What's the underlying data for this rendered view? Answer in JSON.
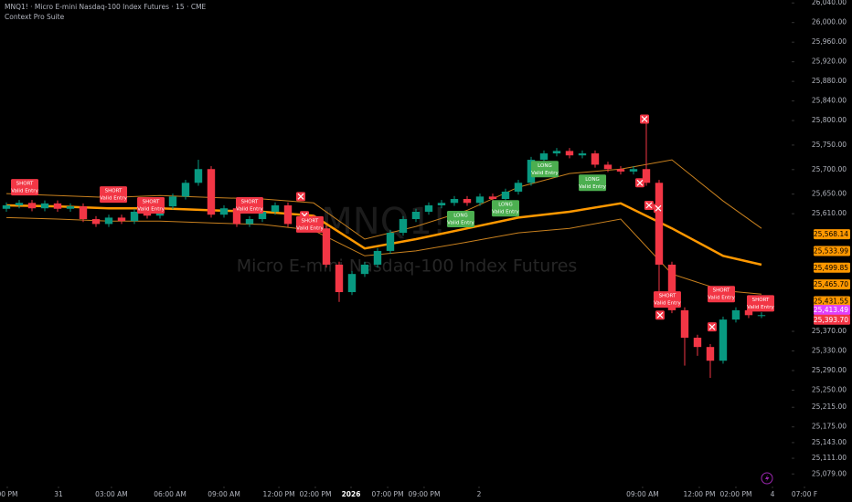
{
  "chart_data": {
    "type": "candlestick",
    "title": "MNQ1! · Micro E-mini Nasdaq-100 Index Futures · 15 · CME",
    "subtitle": "Context Pro Suite",
    "watermark": "MNQ1!",
    "watermark_subtitle": "Micro E-mini Nasdaq-100 Index Futures",
    "up_color": "#089981",
    "down_color": "#f23645",
    "grid": false,
    "xlim": [
      -0.5,
      60.93
    ],
    "ylim": [
      25059,
      26046
    ],
    "x": [
      0,
      1,
      2,
      3,
      4,
      5,
      6,
      7,
      8,
      9,
      10,
      11,
      12,
      13,
      14,
      15,
      16,
      17,
      18,
      19,
      20,
      21,
      22,
      23,
      24,
      25,
      26,
      27,
      28,
      29,
      30,
      31,
      32,
      33,
      34,
      35,
      36,
      37,
      38,
      39,
      40,
      41,
      42,
      43,
      44,
      45,
      46,
      47,
      48,
      49,
      50,
      51,
      52,
      53,
      54,
      55,
      56,
      57,
      58,
      59
    ],
    "open": [
      25620,
      25627,
      25632,
      25621,
      25631,
      25620,
      25625,
      25599,
      25589,
      25602,
      25595,
      25614,
      25606,
      25625,
      25645,
      25673,
      25701,
      25608,
      25621,
      25589,
      25599,
      25614,
      25627,
      25589,
      25602,
      25580,
      25506,
      25450,
      25487,
      25506,
      25534,
      25571,
      25599,
      25614,
      25627,
      25632,
      25640,
      25632,
      25645,
      25640,
      25655,
      25673,
      25720,
      25733,
      25738,
      25729,
      25733,
      25710,
      25701,
      25696,
      25701,
      25673,
      25506,
      25413,
      25357,
      25338,
      25310,
      25394,
      25413,
      25403
    ],
    "high": [
      25633,
      25638,
      25638,
      25637,
      25637,
      25631,
      25631,
      25605,
      25608,
      25608,
      25620,
      25620,
      25631,
      25651,
      25679,
      25720,
      25707,
      25627,
      25627,
      25605,
      25620,
      25633,
      25633,
      25608,
      25608,
      25586,
      25512,
      25493,
      25512,
      25540,
      25577,
      25605,
      25620,
      25633,
      25638,
      25646,
      25646,
      25651,
      25651,
      25661,
      25679,
      25726,
      25739,
      25744,
      25744,
      25739,
      25739,
      25716,
      25707,
      25707,
      25803,
      25679,
      25512,
      25419,
      25363,
      25344,
      25400,
      25419,
      25419,
      25409
    ],
    "low": [
      25614,
      25621,
      25615,
      25615,
      25614,
      25614,
      25593,
      25583,
      25583,
      25589,
      25589,
      25600,
      25600,
      25619,
      25639,
      25667,
      25602,
      25602,
      25583,
      25583,
      25593,
      25608,
      25583,
      25583,
      25574,
      25500,
      25430,
      25444,
      25481,
      25500,
      25528,
      25565,
      25593,
      25608,
      25621,
      25626,
      25626,
      25626,
      25634,
      25634,
      25649,
      25667,
      25714,
      25727,
      25723,
      25723,
      25704,
      25695,
      25690,
      25690,
      25667,
      25420,
      25407,
      25300,
      25320,
      25275,
      25304,
      25388,
      25397,
      25397
    ],
    "close": [
      25627,
      25632,
      25621,
      25631,
      25620,
      25625,
      25599,
      25589,
      25602,
      25595,
      25614,
      25606,
      25625,
      25645,
      25673,
      25701,
      25608,
      25621,
      25589,
      25599,
      25614,
      25627,
      25589,
      25602,
      25580,
      25506,
      25450,
      25487,
      25506,
      25534,
      25571,
      25599,
      25614,
      25627,
      25632,
      25640,
      25632,
      25645,
      25640,
      25655,
      25673,
      25720,
      25733,
      25738,
      25729,
      25733,
      25710,
      25701,
      25696,
      25701,
      25673,
      25506,
      25413,
      25357,
      25338,
      25310,
      25394,
      25413,
      25403,
      25403
    ],
    "bands": [
      {
        "color": "#ff9800",
        "width": 2.5,
        "x": [
          0,
          4,
          8,
          12,
          16,
          20,
          24,
          28,
          32,
          36,
          40,
          44,
          48,
          52,
          56,
          59
        ],
        "values": [
          25627,
          25625,
          25621,
          25621,
          25617,
          25614,
          25606,
          25539,
          25558,
          25580,
          25602,
          25614,
          25631,
          25580,
          25524,
          25506
        ]
      },
      {
        "color": "#c8801e",
        "width": 1,
        "x": [
          0,
          4,
          8,
          12,
          16,
          20,
          24,
          28,
          32,
          36,
          40,
          44,
          48,
          52,
          56,
          59
        ],
        "values": [
          25651,
          25647,
          25643,
          25647,
          25643,
          25640,
          25632,
          25558,
          25584,
          25617,
          25664,
          25692,
          25701,
          25720,
          25636,
          25580
        ]
      },
      {
        "color": "#c8801e",
        "width": 1,
        "x": [
          0,
          4,
          8,
          12,
          16,
          20,
          24,
          28,
          32,
          36,
          40,
          44,
          48,
          52,
          56,
          59
        ],
        "values": [
          25602,
          25599,
          25595,
          25595,
          25591,
          25588,
          25576,
          25524,
          25534,
          25552,
          25571,
          25580,
          25599,
          25487,
          25453,
          25446
        ]
      }
    ],
    "signals": [
      {
        "label": "SHORT",
        "text": "Valid Entry",
        "color": "#f23645",
        "x": 1.43,
        "y": 25664
      },
      {
        "label": "SHORT",
        "text": "Valid Entry",
        "color": "#f23645",
        "x": 8.36,
        "y": 25649
      },
      {
        "label": "SHORT",
        "text": "Valid Entry",
        "color": "#f23645",
        "x": 11.29,
        "y": 25627
      },
      {
        "label": "SHORT",
        "text": "Valid Entry",
        "color": "#f23645",
        "x": 19,
        "y": 25627
      },
      {
        "label": "SHORT",
        "text": "Valid Entry",
        "color": "#f23645",
        "x": 23.71,
        "y": 25588
      },
      {
        "label": "LONG",
        "text": "Valid Entry",
        "color": "#4caf50",
        "x": 35.5,
        "y": 25599
      },
      {
        "label": "LONG",
        "text": "Valid Entry",
        "color": "#4caf50",
        "x": 39,
        "y": 25621
      },
      {
        "label": "LONG",
        "text": "Valid Entry",
        "color": "#4caf50",
        "x": 42.07,
        "y": 25701
      },
      {
        "label": "LONG",
        "text": "Valid Entry",
        "color": "#4caf50",
        "x": 45.79,
        "y": 25673
      },
      {
        "label": "SHORT",
        "text": "Valid Entry",
        "color": "#f23645",
        "x": 51.64,
        "y": 25435
      },
      {
        "label": "SHORT",
        "text": "Valid Entry",
        "color": "#f23645",
        "x": 55.86,
        "y": 25446
      },
      {
        "label": "SHORT",
        "text": "Valid Entry",
        "color": "#f23645",
        "x": 58.93,
        "y": 25427
      }
    ],
    "exits": {
      "x": [
        23,
        23.29,
        49.86,
        49.5,
        50.21,
        50.93,
        51.07,
        55.14
      ],
      "y": [
        25645,
        25606,
        25803,
        25673,
        25627,
        25621,
        25403,
        25379
      ]
    },
    "yticks": [
      {
        "value": 26040,
        "label": "26,040.00"
      },
      {
        "value": 26000,
        "label": "26,000.00"
      },
      {
        "value": 25960,
        "label": "25,960.00"
      },
      {
        "value": 25920,
        "label": "25,920.00"
      },
      {
        "value": 25880,
        "label": "25,880.00"
      },
      {
        "value": 25840,
        "label": "25,840.00"
      },
      {
        "value": 25800,
        "label": "25,800.00"
      },
      {
        "value": 25750,
        "label": "25,750.00"
      },
      {
        "value": 25700,
        "label": "25,700.00"
      },
      {
        "value": 25650,
        "label": "25,650.00"
      },
      {
        "value": 25610,
        "label": "25,610.00"
      },
      {
        "value": 25370,
        "label": "25,370.00"
      },
      {
        "value": 25330,
        "label": "25,330.00"
      },
      {
        "value": 25290,
        "label": "25,290.00"
      },
      {
        "value": 25250,
        "label": "25,250.00"
      },
      {
        "value": 25215,
        "label": "25,215.00"
      },
      {
        "value": 25175,
        "label": "25,175.00"
      },
      {
        "value": 25143,
        "label": "25,143.00"
      },
      {
        "value": 25111,
        "label": "25,111.00"
      },
      {
        "value": 25079,
        "label": "25,079.00"
      }
    ],
    "price_labels": [
      {
        "value": 25568.14,
        "label": "25,568.14",
        "color": "#ff9800"
      },
      {
        "value": 25533.99,
        "label": "25,533.99",
        "color": "#ff9800"
      },
      {
        "value": 25499.85,
        "label": "25,499.85",
        "color": "#ff9800"
      },
      {
        "value": 25465.7,
        "label": "25,465.70",
        "color": "#ff9800"
      },
      {
        "value": 25431.55,
        "label": "25,431.55",
        "color": "#ff9800"
      },
      {
        "value": 25413.49,
        "label": "25,413.49",
        "color": "#e040fb"
      },
      {
        "value": 25393.7,
        "label": "25,393.70",
        "color": "#f23645"
      }
    ],
    "xticks": [
      {
        "value": 0.07,
        "label": "00 PM"
      },
      {
        "value": 4.07,
        "label": "31"
      },
      {
        "value": 8.21,
        "label": "03:00 AM"
      },
      {
        "value": 12.79,
        "label": "06:00 AM"
      },
      {
        "value": 17,
        "label": "09:00 AM"
      },
      {
        "value": 21.29,
        "label": "12:00 PM"
      },
      {
        "value": 24.14,
        "label": "02:00 PM"
      },
      {
        "value": 26.93,
        "label": "2026"
      },
      {
        "value": 29.79,
        "label": "07:00 PM"
      },
      {
        "value": 32.64,
        "label": "09:00 PM"
      },
      {
        "value": 36.93,
        "label": "2"
      },
      {
        "value": 49.71,
        "label": "09:00 AM"
      },
      {
        "value": 54.14,
        "label": "12:00 PM"
      },
      {
        "value": 57,
        "label": "02:00 PM"
      },
      {
        "value": 59.86,
        "label": "4"
      },
      {
        "value": 62.36,
        "label": "07:00 F"
      }
    ]
  }
}
